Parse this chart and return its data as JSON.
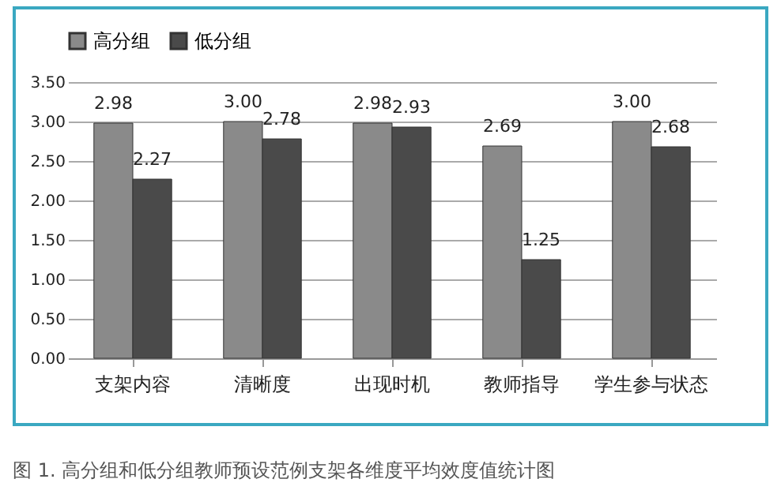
{
  "chart_data": {
    "type": "bar",
    "categories": [
      "支架内容",
      "清晰度",
      "出现时机",
      "教师指导",
      "学生参与状态"
    ],
    "series": [
      {
        "name": "高分组",
        "color": "#8a8a8a",
        "values": [
          2.98,
          3.0,
          2.98,
          2.69,
          3.0
        ],
        "value_labels": [
          "2.98",
          "3.00",
          "2.98",
          "2.69",
          "3.00"
        ]
      },
      {
        "name": "低分组",
        "color": "#4a4a4a",
        "values": [
          2.27,
          2.78,
          2.93,
          1.25,
          2.68
        ],
        "value_labels": [
          "2.27",
          "2.78",
          "2.93",
          "1.25",
          "2.68"
        ]
      }
    ],
    "ylim": [
      0,
      3.5
    ],
    "yticks": [
      {
        "value": 0,
        "label": "0.00"
      },
      {
        "value": 0.5,
        "label": "0.50"
      },
      {
        "value": 1,
        "label": "1.00"
      },
      {
        "value": 1.5,
        "label": "1.50"
      },
      {
        "value": 2,
        "label": "2.00"
      },
      {
        "value": 2.5,
        "label": "2.50"
      },
      {
        "value": 3,
        "label": "3.00"
      },
      {
        "value": 3.5,
        "label": "3.50"
      }
    ],
    "grid": "y",
    "legend": "top",
    "annotations": [
      "图 1. 高分组和低分组教师预设范例支架各维度平均效度值统计图"
    ]
  }
}
